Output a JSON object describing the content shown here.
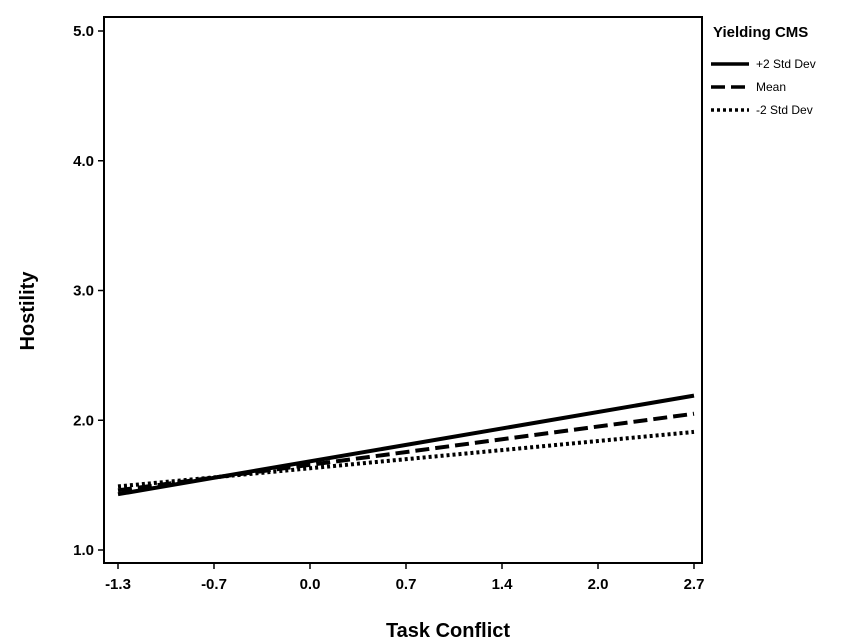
{
  "chart_data": {
    "type": "line",
    "title": "",
    "xlabel": "Task Conflict",
    "ylabel": "Hostility",
    "x_ticks": [
      "-1.3",
      "-0.7",
      "0.0",
      "0.7",
      "1.4",
      "2.0",
      "2.7"
    ],
    "y_ticks": [
      "1.0",
      "2.0",
      "3.0",
      "4.0",
      "5.0"
    ],
    "xlim": [
      -1.3,
      2.7
    ],
    "ylim": [
      1.0,
      5.0
    ],
    "grid": false,
    "legend": {
      "title": "Yielding CMS",
      "position": "top-right outside plot"
    },
    "series": [
      {
        "name": "+2 Std Dev",
        "style": "solid",
        "x": [
          -1.3,
          2.7
        ],
        "y": [
          1.43,
          2.19
        ]
      },
      {
        "name": "Mean",
        "style": "dashed",
        "x": [
          -1.3,
          2.7
        ],
        "y": [
          1.46,
          2.05
        ]
      },
      {
        "name": "-2 Std Dev",
        "style": "dotted",
        "x": [
          -1.3,
          2.7
        ],
        "y": [
          1.49,
          1.91
        ]
      }
    ],
    "colors": {
      "lines": "#000000",
      "background": "#ffffff"
    }
  }
}
